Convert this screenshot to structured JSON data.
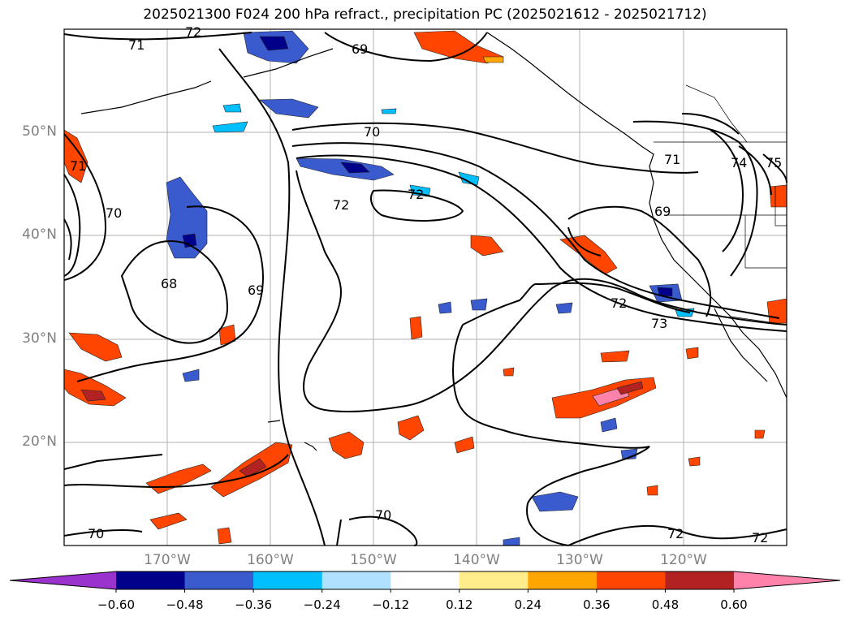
{
  "title": "2025021300 F024 200 hPa refract., precipitation PC (2025021612 - 2025021712)",
  "lat_labels": [
    "50°N",
    "40°N",
    "30°N",
    "20°N"
  ],
  "lon_labels": [
    "170°W",
    "160°W",
    "150°W",
    "140°W",
    "130°W",
    "120°W"
  ],
  "contour_labels": [
    "71",
    "72",
    "69",
    "70",
    "72",
    "71",
    "70",
    "72",
    "69",
    "71",
    "74",
    "75",
    "68",
    "69",
    "72",
    "73",
    "70",
    "70",
    "72",
    "72"
  ],
  "colorbar": {
    "ticks": [
      "−0.60",
      "−0.48",
      "−0.36",
      "−0.24",
      "−0.12",
      "0.12",
      "0.24",
      "0.36",
      "0.48",
      "0.60"
    ],
    "colors": [
      "#9a32cd",
      "#00008b",
      "#3a5bcd",
      "#00bfff",
      "#b0e2ff",
      "#ffffff",
      "#ffec8b",
      "#ffa500",
      "#ff4500",
      "#b22222",
      "#ff82ab"
    ]
  }
}
